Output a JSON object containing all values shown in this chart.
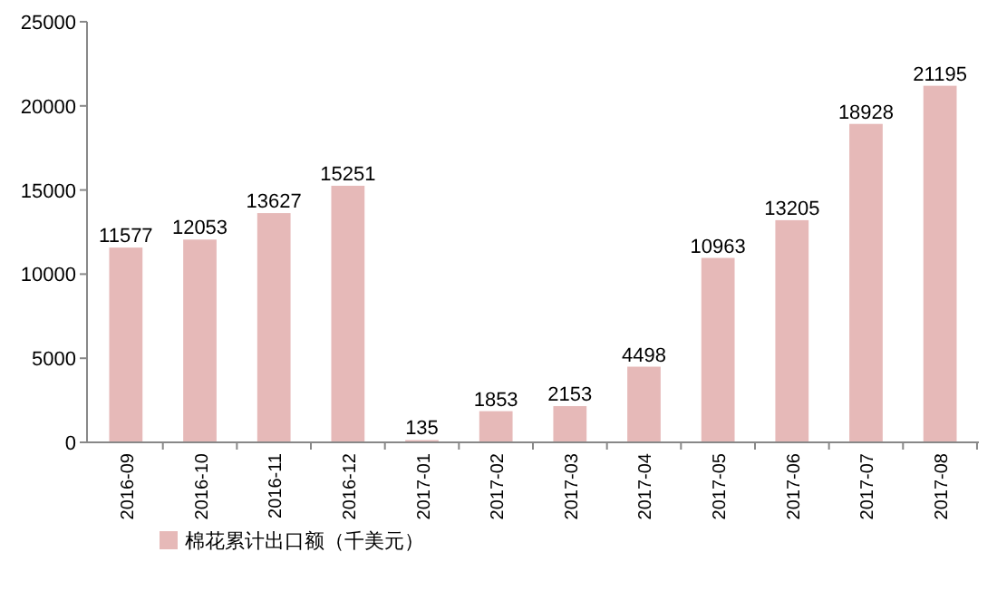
{
  "chart_data": {
    "type": "bar",
    "categories": [
      "2016-09",
      "2016-10",
      "2016-11",
      "2016-12",
      "2017-01",
      "2017-02",
      "2017-03",
      "2017-04",
      "2017-05",
      "2017-06",
      "2017-07",
      "2017-08"
    ],
    "series": [
      {
        "name": "棉花累计出口额（千美元）",
        "color": "#e6b9b8",
        "values": [
          11577,
          12053,
          13627,
          15251,
          135,
          1853,
          2153,
          4498,
          10963,
          13205,
          18928,
          21195
        ]
      }
    ],
    "ylim": [
      0,
      25000
    ],
    "yticks": [
      0,
      5000,
      10000,
      15000,
      20000,
      25000
    ],
    "data_labels": true,
    "legend": "bottom left",
    "grid": false
  }
}
